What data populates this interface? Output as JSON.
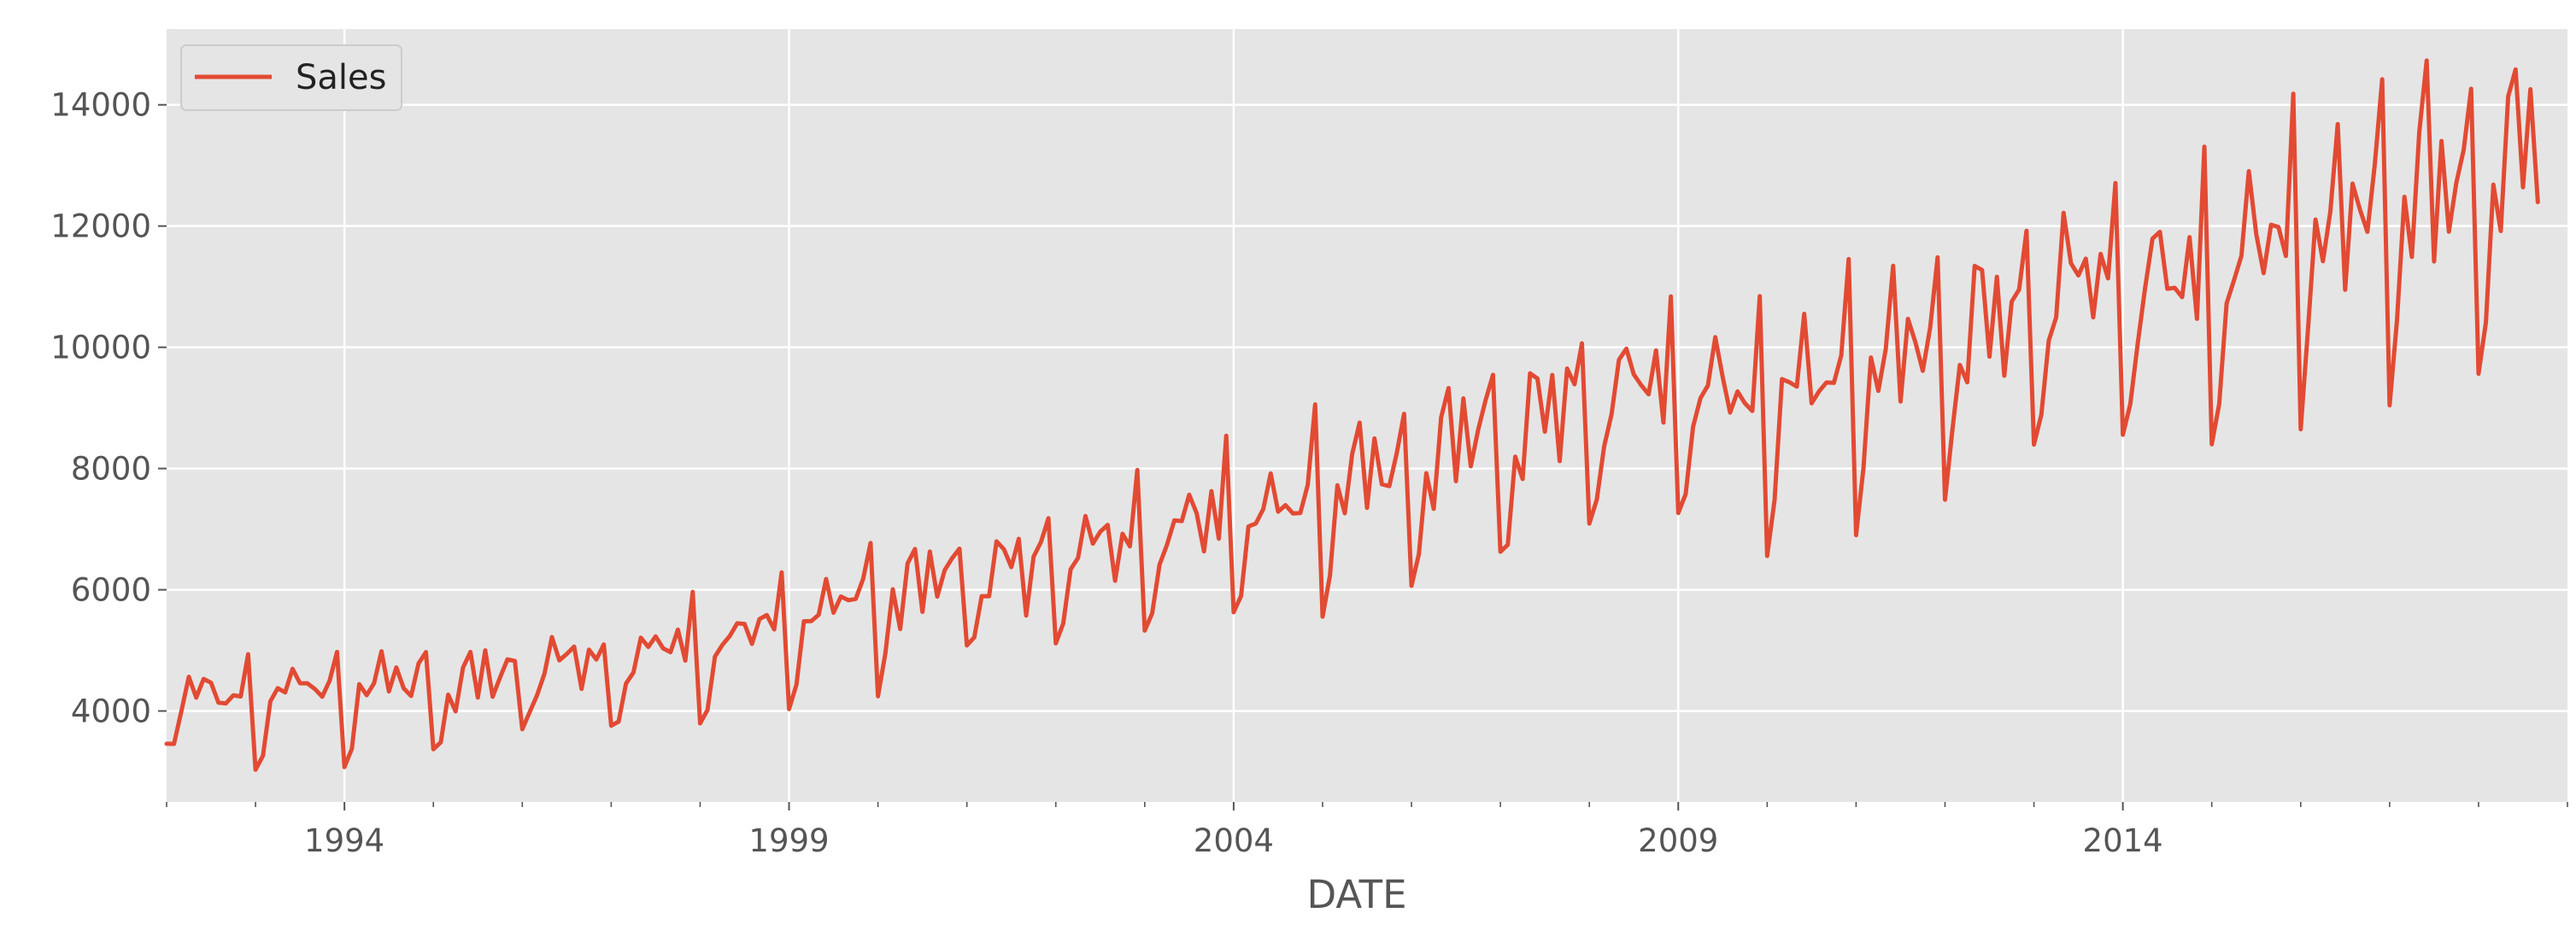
{
  "chart_data": {
    "type": "line",
    "title": "",
    "xlabel": "DATE",
    "ylabel": "",
    "x_start": "1992-01",
    "x_end": "2019-01",
    "x_frequency": "monthly",
    "xlim": [
      "1992-01",
      "2019-01"
    ],
    "ylim": [
      2500,
      15250
    ],
    "grid": true,
    "legend_position": "top-left",
    "x_major_ticks": [
      {
        "label": "1994",
        "date": "1994-01"
      },
      {
        "label": "1999",
        "date": "1999-01"
      },
      {
        "label": "2004",
        "date": "2004-01"
      },
      {
        "label": "2009",
        "date": "2009-01"
      },
      {
        "label": "2014",
        "date": "2014-01"
      }
    ],
    "x_minor_ticks": [
      "1992-01",
      "1993-01",
      "1995-01",
      "1996-01",
      "1997-01",
      "1998-01",
      "2000-01",
      "2001-01",
      "2002-01",
      "2003-01",
      "2005-01",
      "2006-01",
      "2007-01",
      "2008-01",
      "2010-01",
      "2011-01",
      "2012-01",
      "2013-01",
      "2015-01",
      "2016-01",
      "2017-01",
      "2018-01",
      "2019-01"
    ],
    "y_ticks": [
      {
        "label": "4000",
        "value": 4000
      },
      {
        "label": "6000",
        "value": 6000
      },
      {
        "label": "8000",
        "value": 8000
      },
      {
        "label": "10000",
        "value": 10000
      },
      {
        "label": "12000",
        "value": 12000
      },
      {
        "label": "14000",
        "value": 14000
      }
    ],
    "series": [
      {
        "name": "Sales",
        "color": "#E24A33",
        "values": [
          3459,
          3458,
          4002,
          4564,
          4221,
          4529,
          4466,
          4137,
          4126,
          4259,
          4240,
          4936,
          3031,
          3261,
          4160,
          4377,
          4307,
          4696,
          4458,
          4457,
          4364,
          4236,
          4500,
          4974,
          3075,
          3377,
          4443,
          4261,
          4460,
          4985,
          4324,
          4719,
          4374,
          4248,
          4784,
          4971,
          3370,
          3484,
          4269,
          3994,
          4715,
          4974,
          4223,
          5000,
          4235,
          4554,
          4851,
          4826,
          3699,
          3983,
          4262,
          4619,
          5219,
          4836,
          4941,
          5062,
          4365,
          5012,
          4850,
          5097,
          3758,
          3825,
          4454,
          4635,
          5210,
          5057,
          5231,
          5034,
          4970,
          5342,
          4831,
          5965,
          3796,
          4019,
          4898,
          5090,
          5237,
          5447,
          5435,
          5107,
          5515,
          5583,
          5346,
          6286,
          4032,
          4435,
          5479,
          5483,
          5587,
          6177,
          5621,
          5889,
          5828,
          5849,
          6180,
          6771,
          4243,
          4952,
          6008,
          5353,
          6435,
          6673,
          5636,
          6630,
          5887,
          6322,
          6520,
          6678,
          5082,
          5216,
          5893,
          5894,
          6799,
          6667,
          6374,
          6840,
          5575,
          6545,
          6789,
          7180,
          5117,
          5442,
          6337,
          6525,
          7216,
          6761,
          6958,
          7070,
          6148,
          6924,
          6716,
          7975,
          5326,
          5609,
          6414,
          6741,
          7144,
          7133,
          7568,
          7266,
          6634,
          7626,
          6843,
          8540,
          5629,
          5898,
          7045,
          7094,
          7333,
          7918,
          7289,
          7396,
          7259,
          7268,
          7731,
          9058,
          5557,
          6237,
          7723,
          7262,
          8241,
          8757,
          7352,
          8496,
          7741,
          7710,
          8247,
          8902,
          6066,
          6590,
          7923,
          7335,
          8843,
          9327,
          7792,
          9156,
          8037,
          8640,
          9128,
          9545,
          6627,
          6743,
          8195,
          7828,
          9570,
          9484,
          8608,
          9543,
          8123,
          9649,
          9390,
          10065,
          7093,
          7483,
          8365,
          8895,
          9794,
          9977,
          9553,
          9375,
          9225,
          9948,
          8758,
          10839,
          7266,
          7578,
          8688,
          9162,
          9369,
          10167,
          9507,
          8923,
          9272,
          9075,
          8949,
          10843,
          6558,
          7481,
          9475,
          9424,
          9351,
          10552,
          9077,
          9273,
          9420,
          9413,
          9866,
          11455,
          6901,
          8014,
          9832,
          9281,
          9967,
          11344,
          9106,
          10469,
          10085,
          9612,
          10328,
          11483,
          7486,
          8641,
          9709,
          9423,
          11342,
          11274,
          9845,
          11163,
          9532,
          10754,
          10953,
          11922,
          8395,
          8888,
          10110,
          10493,
          12218,
          11385,
          11186,
          11462,
          10494,
          11540,
          11138,
          12709,
          8557,
          9059,
          10055,
          10977,
          11792,
          11904,
          10965,
          10981,
          10828,
          11817,
          10470,
          13310,
          8400,
          9062,
          10722,
          11107,
          11508,
          12904,
          11869,
          11224,
          12022,
          11983,
          11506,
          14183,
          8648,
          10321,
          12107,
          11420,
          12238,
          13681,
          10950,
          12700,
          12272,
          11905,
          13016,
          14421,
          9043,
          10452,
          12481,
          11491,
          13545,
          14730,
          11416,
          13402,
          11907,
          12711,
          13261,
          14265,
          9564,
          10415,
          12683,
          11919,
          14138,
          14583,
          12640,
          14257,
          12396
        ]
      }
    ]
  }
}
